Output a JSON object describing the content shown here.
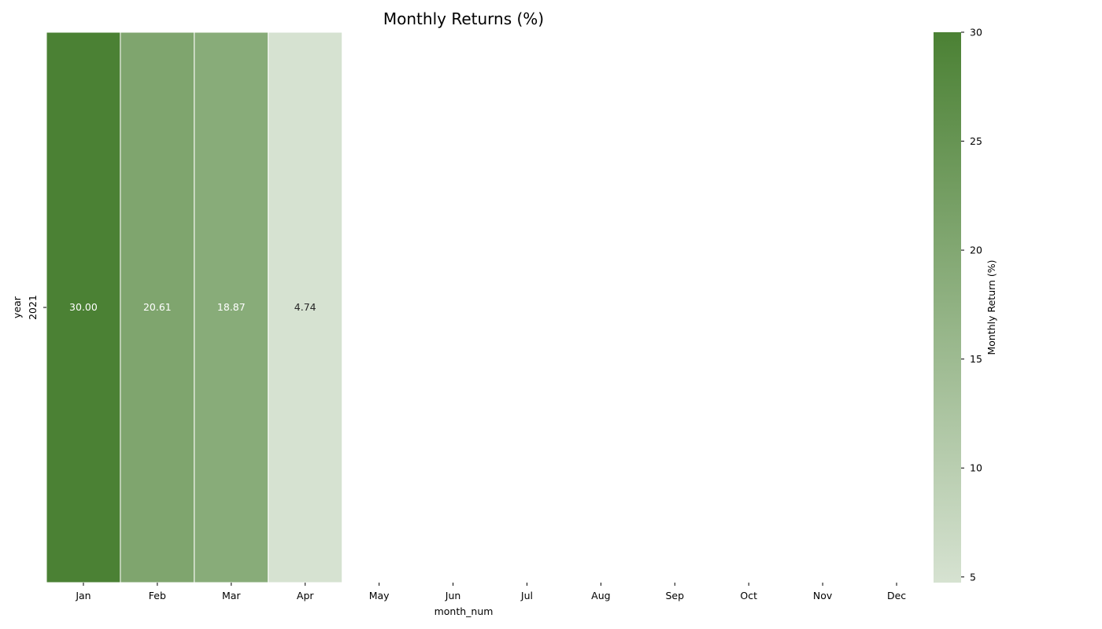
{
  "chart_data": {
    "type": "heatmap",
    "title": "Monthly Returns (%)",
    "xlabel": "month_num",
    "ylabel": "year",
    "x_categories": [
      "Jan",
      "Feb",
      "Mar",
      "Apr",
      "May",
      "Jun",
      "Jul",
      "Aug",
      "Sep",
      "Oct",
      "Nov",
      "Dec"
    ],
    "y_categories": [
      "2021"
    ],
    "values": [
      [
        30.0,
        20.61,
        18.87,
        4.74,
        null,
        null,
        null,
        null,
        null,
        null,
        null,
        null
      ]
    ],
    "value_labels": [
      [
        "30.00",
        "20.61",
        "18.87",
        "4.74",
        "",
        "",
        "",
        "",
        "",
        "",
        "",
        ""
      ]
    ],
    "colorbar": {
      "label": "Monthly Return (%)",
      "range": [
        4.74,
        30.0
      ],
      "ticks": [
        5,
        10,
        15,
        20,
        25,
        30
      ],
      "color_low": "#d6e2d1",
      "color_high": "#4b8134"
    },
    "grid": false,
    "legend": "colorbar-right"
  }
}
